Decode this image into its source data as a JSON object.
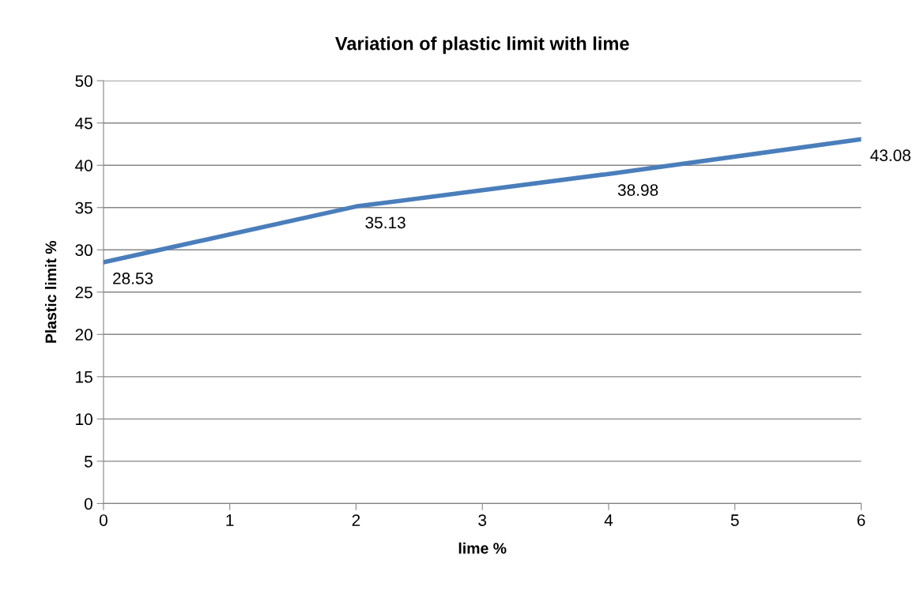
{
  "chart_data": {
    "type": "line",
    "title": "Variation of plastic limit with lime",
    "xlabel": "lime %",
    "ylabel": "Plastic limit %",
    "x": [
      0,
      2,
      4,
      6
    ],
    "series": [
      {
        "color": "#4a7ebb",
        "values": [
          28.53,
          35.13,
          38.98,
          43.08
        ]
      }
    ],
    "xlim": [
      0,
      6
    ],
    "xticks": [
      0,
      1,
      2,
      3,
      4,
      5,
      6
    ],
    "ylim": [
      0,
      50
    ],
    "yticks": [
      0,
      5,
      10,
      15,
      20,
      25,
      30,
      35,
      40,
      45,
      50
    ],
    "grid": "y",
    "data_labels": true,
    "marker": "none",
    "line_style": "solid"
  }
}
